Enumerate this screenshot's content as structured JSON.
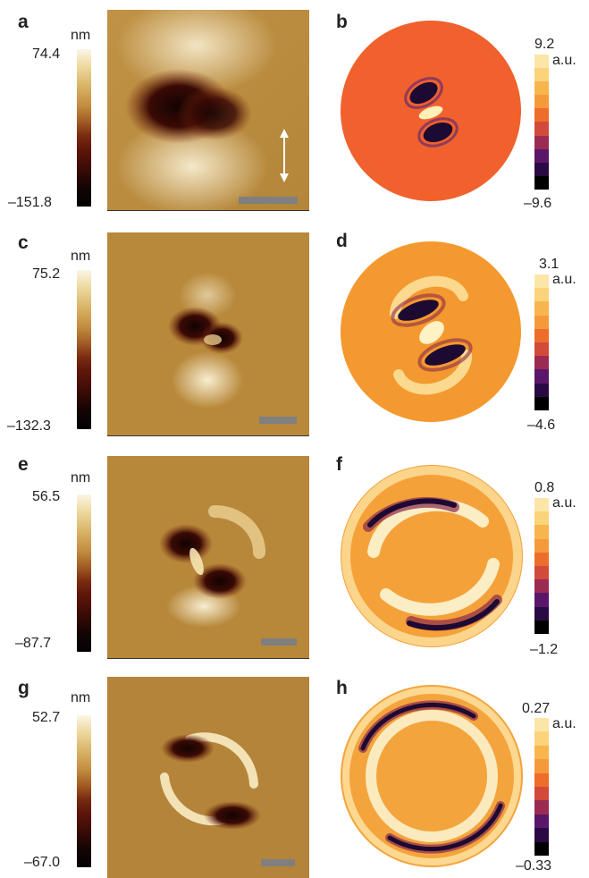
{
  "figure": {
    "rows": [
      {
        "afm": {
          "label": "a",
          "unit": "nm",
          "max": "74.4",
          "min": "–151.8",
          "has_arrow": true
        },
        "sim": {
          "label": "b",
          "unit": "a.u.",
          "max": "9.2",
          "min": "–9.6"
        }
      },
      {
        "afm": {
          "label": "c",
          "unit": "nm",
          "max": "75.2",
          "min": "–132.3",
          "has_arrow": false
        },
        "sim": {
          "label": "d",
          "unit": "a.u.",
          "max": "3.1",
          "min": "–4.6"
        }
      },
      {
        "afm": {
          "label": "e",
          "unit": "nm",
          "max": "56.5",
          "min": "–87.7",
          "has_arrow": false
        },
        "sim": {
          "label": "f",
          "unit": "a.u.",
          "max": "0.8",
          "min": "–1.2"
        }
      },
      {
        "afm": {
          "label": "g",
          "unit": "nm",
          "max": "52.7",
          "min": "–67.0",
          "has_arrow": false
        },
        "sim": {
          "label": "h",
          "unit": "a.u.",
          "max": "0.27",
          "min": "–0.33"
        }
      }
    ],
    "colors": {
      "afm_background": "#b98a3a",
      "afm_bright": "#fbf3d9",
      "afm_dark": "#1a0503",
      "sim_background": "#f08a2c",
      "sim_dark": "#1d0a33",
      "sim_bright": "#fff2c4",
      "scalebar": "#7f7f7f"
    },
    "sim_colorbar_steps": [
      "#fbe6a8",
      "#fbd37a",
      "#f8b54d",
      "#f59a3a",
      "#ee6d2a",
      "#d24a3a",
      "#9c2b53",
      "#5a1769",
      "#2a0a44",
      "#000000"
    ]
  }
}
